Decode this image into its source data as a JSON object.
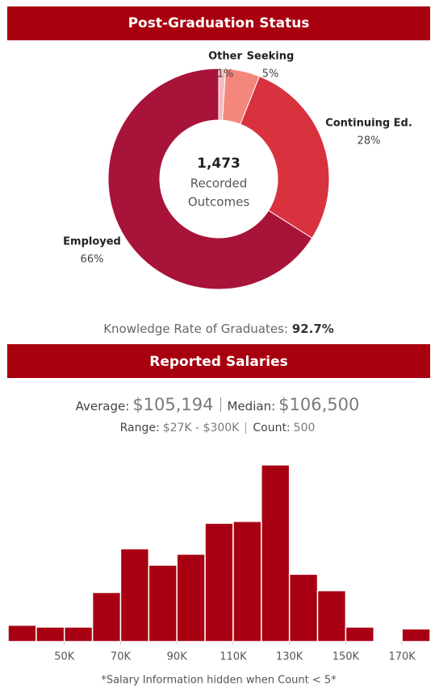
{
  "header": {
    "status_title": "Post-Graduation Status",
    "salary_title": "Reported Salaries"
  },
  "knowledge": {
    "label": "Knowledge Rate of Graduates:",
    "value": "92.7%"
  },
  "salary_stats": {
    "average_label": "Average:",
    "average": "$105,194",
    "median_label": "Median:",
    "median": "$106,500",
    "range_label": "Range:",
    "range": "$27K - $300K",
    "count_label": "Count:",
    "count": "500"
  },
  "chart_data": [
    {
      "type": "pie",
      "donut": true,
      "categories": [
        "Other",
        "Seeking",
        "Continuing Ed.",
        "Employed"
      ],
      "values": [
        1,
        5,
        28,
        66
      ],
      "value_labels": [
        "1%",
        "5%",
        "28%",
        "66%"
      ],
      "colors": [
        "#f7b9c0",
        "#f4877b",
        "#d8323f",
        "#a8133a"
      ],
      "center_text": [
        "1,473",
        "Recorded",
        "Outcomes"
      ]
    },
    {
      "type": "histogram",
      "bins": [
        30000,
        40000,
        50000,
        60000,
        70000,
        80000,
        90000,
        100000,
        110000,
        120000,
        130000,
        140000,
        150000,
        160000,
        170000,
        180000
      ],
      "values": [
        9,
        8,
        8,
        27,
        51,
        42,
        48,
        65,
        66,
        97,
        37,
        28,
        8,
        null,
        7
      ],
      "color": "#a80012",
      "xlim": [
        30000,
        180000
      ],
      "ylim": [
        0,
        100
      ],
      "xticks": [
        {
          "value": 50000,
          "label": "50K"
        },
        {
          "value": 70000,
          "label": "70K"
        },
        {
          "value": 90000,
          "label": "90K"
        },
        {
          "value": 110000,
          "label": "110K"
        },
        {
          "value": 130000,
          "label": "130K"
        },
        {
          "value": 150000,
          "label": "150K"
        },
        {
          "value": 170000,
          "label": "170K"
        }
      ],
      "note": "*Salary Information hidden when Count < 5*"
    }
  ]
}
